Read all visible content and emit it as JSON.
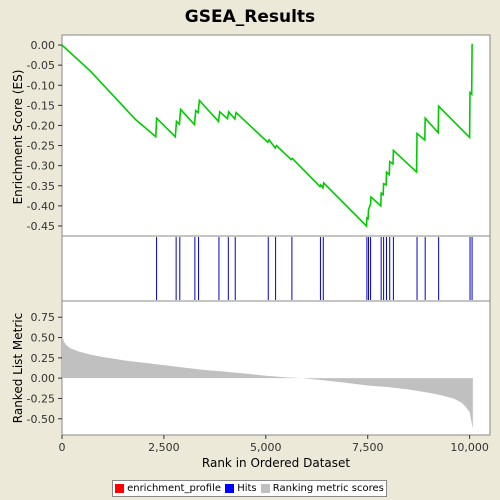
{
  "chart_data": {
    "type": "line",
    "title": "GSEA_Results",
    "xlabel": "Rank in Ordered Dataset",
    "xlim": [
      0,
      10500
    ],
    "x_ticks": [
      {
        "value": 0,
        "label": "0"
      },
      {
        "value": 2500,
        "label": "2,500"
      },
      {
        "value": 5000,
        "label": "5,000"
      },
      {
        "value": 7500,
        "label": "7,500"
      },
      {
        "value": 10000,
        "label": "10,000"
      }
    ],
    "panels": {
      "enrichment": {
        "ylabel": "Enrichment Score (ES)",
        "ylim": [
          -0.475,
          0.025
        ],
        "y_ticks": [
          {
            "value": 0.0,
            "label": "0.00"
          },
          {
            "value": -0.05,
            "label": "-0.05"
          },
          {
            "value": -0.1,
            "label": "-0.10"
          },
          {
            "value": -0.15,
            "label": "-0.15"
          },
          {
            "value": -0.2,
            "label": "-0.20"
          },
          {
            "value": -0.25,
            "label": "-0.25"
          },
          {
            "value": -0.3,
            "label": "-0.30"
          },
          {
            "value": -0.35,
            "label": "-0.35"
          },
          {
            "value": -0.4,
            "label": "-0.40"
          },
          {
            "value": -0.45,
            "label": "-0.45"
          }
        ],
        "profile_x": [
          0,
          700,
          1800,
          2300,
          2320,
          2780,
          2810,
          2880,
          2910,
          3250,
          3280,
          3340,
          3370,
          3840,
          3870,
          4060,
          4090,
          4240,
          4270,
          5050,
          5080,
          5230,
          5260,
          5620,
          5650,
          6330,
          6350,
          6400,
          6420,
          7470,
          7480,
          7510,
          7520,
          7570,
          7580,
          7820,
          7830,
          7880,
          7890,
          7950,
          7960,
          8030,
          8040,
          8120,
          8130,
          8700,
          8710,
          8900,
          8910,
          9230,
          9240,
          10000,
          10010,
          10050,
          10060
        ],
        "profile_y": [
          0.0,
          -0.065,
          -0.185,
          -0.228,
          -0.182,
          -0.228,
          -0.19,
          -0.197,
          -0.16,
          -0.198,
          -0.163,
          -0.168,
          -0.138,
          -0.19,
          -0.166,
          -0.183,
          -0.166,
          -0.184,
          -0.168,
          -0.242,
          -0.236,
          -0.256,
          -0.25,
          -0.285,
          -0.282,
          -0.352,
          -0.348,
          -0.355,
          -0.343,
          -0.45,
          -0.43,
          -0.432,
          -0.41,
          -0.395,
          -0.378,
          -0.4,
          -0.368,
          -0.372,
          -0.345,
          -0.348,
          -0.316,
          -0.322,
          -0.29,
          -0.296,
          -0.262,
          -0.316,
          -0.22,
          -0.236,
          -0.182,
          -0.218,
          -0.152,
          -0.23,
          -0.118,
          -0.122,
          0.003
        ],
        "color": "#00cc00"
      },
      "hits": {
        "color": "#0000cc",
        "x": [
          2320,
          2800,
          2890,
          3260,
          3350,
          3850,
          4080,
          4250,
          5060,
          5240,
          5640,
          6340,
          6410,
          7480,
          7520,
          7570,
          7830,
          7890,
          7960,
          8040,
          8130,
          8710,
          8910,
          9240,
          10010,
          10060
        ]
      },
      "ranking": {
        "ylabel": "Ranked List Metric",
        "ylim": [
          -0.7,
          0.95
        ],
        "y_ticks": [
          {
            "value": 0.75,
            "label": "0.75"
          },
          {
            "value": 0.5,
            "label": "0.50"
          },
          {
            "value": 0.25,
            "label": "0.25"
          },
          {
            "value": 0.0,
            "label": "0.00"
          },
          {
            "value": -0.25,
            "label": "-0.25"
          },
          {
            "value": -0.5,
            "label": "-0.50"
          }
        ],
        "profile_x": [
          0,
          50,
          100,
          200,
          400,
          700,
          1000,
          1500,
          2000,
          2500,
          3000,
          3500,
          4000,
          4500,
          5000,
          5500,
          5900,
          6500,
          7000,
          7500,
          8000,
          8500,
          9000,
          9300,
          9600,
          9800,
          9900,
          10000,
          10050,
          10080
        ],
        "profile_y": [
          0.52,
          0.45,
          0.41,
          0.37,
          0.33,
          0.29,
          0.26,
          0.22,
          0.19,
          0.16,
          0.13,
          0.1,
          0.08,
          0.055,
          0.03,
          0.01,
          0.0,
          -0.03,
          -0.06,
          -0.09,
          -0.11,
          -0.14,
          -0.18,
          -0.21,
          -0.25,
          -0.3,
          -0.35,
          -0.42,
          -0.55,
          -0.62
        ],
        "color": "#c0c0c0"
      }
    },
    "legend": {
      "placement": "bottom",
      "items": [
        {
          "label": "enrichment_profile",
          "color": "#ff0000"
        },
        {
          "label": "Hits",
          "color": "#0000ff"
        },
        {
          "label": "Ranking metric scores",
          "color": "#c0c0c0"
        }
      ]
    }
  }
}
